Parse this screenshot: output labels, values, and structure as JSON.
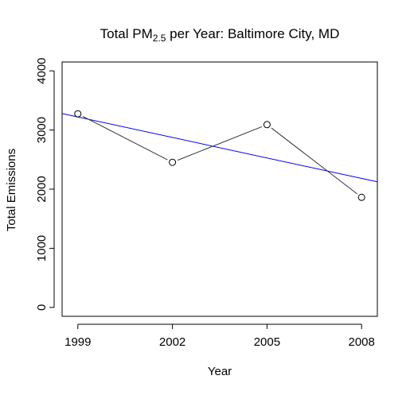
{
  "chart_data": {
    "type": "line",
    "title": {
      "prefix": "Total PM",
      "subscript": "2.5",
      "suffix": " per Year: Baltimore City, MD"
    },
    "xlabel": "Year",
    "ylabel": "Total Emissions",
    "x": [
      1999,
      2002,
      2005,
      2008
    ],
    "x_ticks": [
      "1999",
      "2002",
      "2005",
      "2008"
    ],
    "y_ticks": [
      "0",
      "1000",
      "2000",
      "3000",
      "4000"
    ],
    "xlim": [
      1998.5,
      2008.5
    ],
    "ylim": [
      -150,
      4150
    ],
    "series": [
      {
        "values": [
          3274,
          2454,
          3091,
          1862
        ],
        "color": "#333333",
        "marker": "open-circle"
      }
    ],
    "trend_line": {
      "color": "#0000ff",
      "intercept_at_1999": 3220,
      "slope_per_year": -115.4
    },
    "grid": false,
    "legend": "none"
  }
}
